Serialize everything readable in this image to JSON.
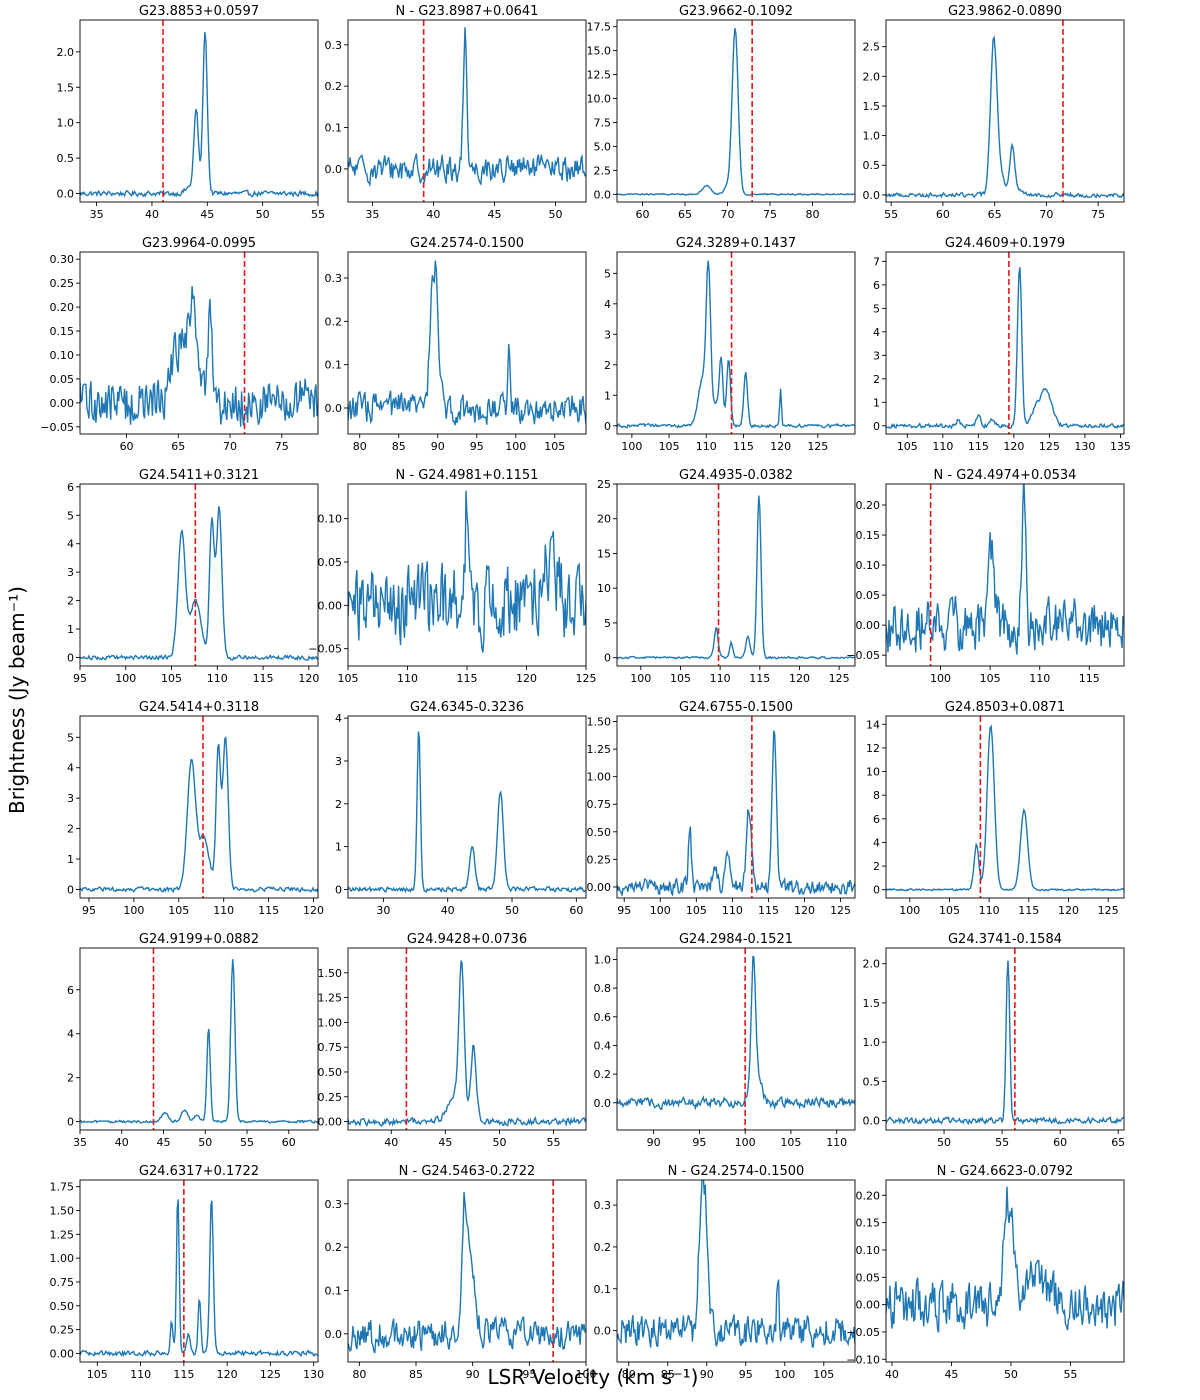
{
  "figure": {
    "xlabel": "LSR Velocity (km s⁻¹)",
    "ylabel": "Brightness (Jy beam⁻¹)",
    "colors": {
      "line": "#1f77b4",
      "marker": "#e31a1c"
    }
  },
  "chart_data": [
    {
      "type": "line",
      "title": "G23.8853+0.0597",
      "xlim": [
        33.5,
        55
      ],
      "ylim": [
        -0.12,
        2.45
      ],
      "xticks": [
        35,
        40,
        45,
        50,
        55
      ],
      "yticks": [
        0.0,
        0.5,
        1.0,
        1.5,
        2.0
      ],
      "ytick_labels": [
        "0.0",
        "0.5",
        "1.0",
        "1.5",
        "2.0"
      ],
      "dashed_x": 41.0,
      "noise": 0.02,
      "baseline": 0,
      "peaks": [
        [
          43.5,
          0.1,
          0.4
        ],
        [
          44.0,
          1.15,
          0.2
        ],
        [
          44.8,
          2.3,
          0.2
        ]
      ]
    },
    {
      "type": "line",
      "title": "N - G23.8987+0.0641",
      "xlim": [
        33,
        52.5
      ],
      "ylim": [
        -0.08,
        0.36
      ],
      "xticks": [
        35,
        40,
        45,
        50
      ],
      "yticks": [
        0.0,
        0.1,
        0.2,
        0.3
      ],
      "ytick_labels": [
        "0.0",
        "0.1",
        "0.2",
        "0.3"
      ],
      "dashed_x": 39.2,
      "noise": 0.018,
      "baseline": 0,
      "peaks": [
        [
          42.6,
          0.33,
          0.15
        ]
      ]
    },
    {
      "type": "line",
      "title": "G23.9662-0.1092",
      "xlim": [
        57,
        85
      ],
      "ylim": [
        -0.8,
        18.2
      ],
      "xticks": [
        60,
        65,
        70,
        75,
        80
      ],
      "yticks": [
        0.0,
        2.5,
        5.0,
        7.5,
        10.0,
        12.5,
        15.0,
        17.5
      ],
      "ytick_labels": [
        "0.0",
        "2.5",
        "5.0",
        "7.5",
        "10.0",
        "12.5",
        "15.0",
        "17.5"
      ],
      "dashed_x": 72.9,
      "noise": 0.04,
      "baseline": 0,
      "peaks": [
        [
          67.5,
          0.9,
          0.5
        ],
        [
          70.9,
          17.3,
          0.35
        ],
        [
          70.0,
          0.8,
          0.4
        ]
      ]
    },
    {
      "type": "line",
      "title": "G23.9862-0.0890",
      "xlim": [
        54.5,
        77.5
      ],
      "ylim": [
        -0.12,
        2.95
      ],
      "xticks": [
        55,
        60,
        65,
        70,
        75
      ],
      "yticks": [
        0.0,
        0.5,
        1.0,
        1.5,
        2.0,
        2.5
      ],
      "ytick_labels": [
        "0.0",
        "0.5",
        "1.0",
        "1.5",
        "2.0",
        "2.5"
      ],
      "dashed_x": 71.6,
      "noise": 0.02,
      "baseline": 0,
      "peaks": [
        [
          64.9,
          2.3,
          0.3
        ],
        [
          65.3,
          0.5,
          0.5
        ],
        [
          66.7,
          0.8,
          0.25
        ],
        [
          67.5,
          0.1,
          0.3
        ]
      ]
    },
    {
      "type": "line",
      "title": "G23.9964-0.0995",
      "xlim": [
        55.5,
        78.5
      ],
      "ylim": [
        -0.065,
        0.315
      ],
      "xticks": [
        60,
        65,
        70,
        75
      ],
      "yticks": [
        -0.05,
        0.0,
        0.05,
        0.1,
        0.15,
        0.2,
        0.25,
        0.3
      ],
      "ytick_labels": [
        "−0.05",
        "0.00",
        "0.05",
        "0.10",
        "0.15",
        "0.20",
        "0.25",
        "0.30"
      ],
      "dashed_x": 71.4,
      "noise": 0.028,
      "baseline": 0,
      "peaks": [
        [
          65.5,
          0.13,
          1.0
        ],
        [
          66.5,
          0.15,
          0.3
        ],
        [
          68.1,
          0.2,
          0.2
        ]
      ]
    },
    {
      "type": "line",
      "title": "G24.2574-0.1500",
      "xlim": [
        78.5,
        109
      ],
      "ylim": [
        -0.06,
        0.36
      ],
      "xticks": [
        80,
        85,
        90,
        95,
        100,
        105
      ],
      "yticks": [
        0.0,
        0.1,
        0.2,
        0.3
      ],
      "ytick_labels": [
        "0.0",
        "0.1",
        "0.2",
        "0.3"
      ],
      "dashed_x": null,
      "noise": 0.02,
      "baseline": 0,
      "peaks": [
        [
          89.2,
          0.22,
          0.3
        ],
        [
          89.8,
          0.28,
          0.35
        ],
        [
          99.1,
          0.13,
          0.15
        ]
      ]
    },
    {
      "type": "line",
      "title": "G24.3289+0.1437",
      "xlim": [
        98,
        130
      ],
      "ylim": [
        -0.27,
        5.7
      ],
      "xticks": [
        100,
        105,
        110,
        115,
        120,
        125
      ],
      "yticks": [
        0,
        1,
        2,
        3,
        4,
        5
      ],
      "ytick_labels": [
        "0",
        "1",
        "2",
        "3",
        "4",
        "5"
      ],
      "dashed_x": 113.4,
      "noise": 0.03,
      "baseline": 0,
      "peaks": [
        [
          109.5,
          1.5,
          0.6
        ],
        [
          110.3,
          4.8,
          0.3
        ],
        [
          112.0,
          2.2,
          0.25
        ],
        [
          113.0,
          2.2,
          0.25
        ],
        [
          115.3,
          1.8,
          0.25
        ],
        [
          120.0,
          1.25,
          0.12
        ],
        [
          111.3,
          0.7,
          0.3
        ]
      ]
    },
    {
      "type": "line",
      "title": "G24.4609+0.1979",
      "xlim": [
        102,
        135.5
      ],
      "ylim": [
        -0.35,
        7.4
      ],
      "xticks": [
        105,
        110,
        115,
        120,
        125,
        130,
        135
      ],
      "yticks": [
        0,
        1,
        2,
        3,
        4,
        5,
        6,
        7
      ],
      "ytick_labels": [
        "0",
        "1",
        "2",
        "3",
        "4",
        "5",
        "6",
        "7"
      ],
      "dashed_x": 119.3,
      "noise": 0.05,
      "baseline": 0,
      "peaks": [
        [
          112.2,
          0.25,
          0.2
        ],
        [
          115.0,
          0.4,
          0.3
        ],
        [
          117.0,
          0.3,
          0.3
        ],
        [
          120.8,
          6.9,
          0.3
        ],
        [
          124.5,
          1.5,
          0.8
        ],
        [
          123.0,
          0.6,
          0.6
        ]
      ]
    },
    {
      "type": "line",
      "title": "G24.5411+0.3121",
      "xlim": [
        95,
        121
      ],
      "ylim": [
        -0.3,
        6.1
      ],
      "xticks": [
        95,
        100,
        105,
        110,
        115,
        120
      ],
      "yticks": [
        0,
        1,
        2,
        3,
        4,
        5,
        6
      ],
      "ytick_labels": [
        "0",
        "1",
        "2",
        "3",
        "4",
        "5",
        "6"
      ],
      "dashed_x": 107.6,
      "noise": 0.04,
      "baseline": 0,
      "peaks": [
        [
          106.1,
          4.4,
          0.4
        ],
        [
          107.6,
          2.0,
          0.6
        ],
        [
          109.4,
          4.8,
          0.25
        ],
        [
          110.2,
          5.3,
          0.3
        ]
      ]
    },
    {
      "type": "line",
      "title": "N - G24.4981+0.1151",
      "xlim": [
        105,
        125
      ],
      "ylim": [
        -0.07,
        0.14
      ],
      "xticks": [
        105,
        110,
        115,
        120,
        125
      ],
      "yticks": [
        -0.05,
        0.0,
        0.05,
        0.1
      ],
      "ytick_labels": [
        "−0.05",
        "0.00",
        "0.05",
        "0.10"
      ],
      "dashed_x": null,
      "noise": 0.025,
      "baseline": 0,
      "peaks": [
        [
          115.0,
          0.12,
          0.15
        ],
        [
          122.0,
          0.04,
          0.6
        ]
      ]
    },
    {
      "type": "line",
      "title": "G24.4935-0.0382",
      "xlim": [
        97,
        127
      ],
      "ylim": [
        -1.2,
        25.0
      ],
      "xticks": [
        100,
        105,
        110,
        115,
        120,
        125
      ],
      "yticks": [
        0,
        5,
        10,
        15,
        20,
        25
      ],
      "ytick_labels": [
        "0",
        "5",
        "10",
        "15",
        "20",
        "25"
      ],
      "dashed_x": 109.8,
      "noise": 0.08,
      "baseline": 0,
      "peaks": [
        [
          109.5,
          4.3,
          0.25
        ],
        [
          111.4,
          2.2,
          0.2
        ],
        [
          113.5,
          3.2,
          0.25
        ],
        [
          114.9,
          23.5,
          0.25
        ]
      ]
    },
    {
      "type": "line",
      "title": "N - G24.4974+0.0534",
      "xlim": [
        94.5,
        118.5
      ],
      "ylim": [
        -0.068,
        0.235
      ],
      "xticks": [
        100,
        105,
        110,
        115
      ],
      "yticks": [
        -0.05,
        0.0,
        0.05,
        0.1,
        0.15,
        0.2
      ],
      "ytick_labels": [
        "−0.05",
        "0.00",
        "0.05",
        "0.10",
        "0.15",
        "0.20"
      ],
      "dashed_x": 99.0,
      "noise": 0.025,
      "baseline": 0,
      "peaks": [
        [
          105.1,
          0.12,
          0.3
        ],
        [
          108.4,
          0.21,
          0.2
        ]
      ]
    },
    {
      "type": "line",
      "title": "G24.5414+0.3118",
      "xlim": [
        94,
        120.5
      ],
      "ylim": [
        -0.28,
        5.7
      ],
      "xticks": [
        95,
        100,
        105,
        110,
        115,
        120
      ],
      "yticks": [
        0,
        1,
        2,
        3,
        4,
        5
      ],
      "ytick_labels": [
        "0",
        "1",
        "2",
        "3",
        "4",
        "5"
      ],
      "dashed_x": 107.7,
      "noise": 0.04,
      "baseline": 0,
      "peaks": [
        [
          106.4,
          4.2,
          0.45
        ],
        [
          107.8,
          1.7,
          0.6
        ],
        [
          109.4,
          4.6,
          0.25
        ],
        [
          110.2,
          5.0,
          0.3
        ]
      ]
    },
    {
      "type": "line",
      "title": "G24.6345-0.3236",
      "xlim": [
        24.5,
        61.5
      ],
      "ylim": [
        -0.2,
        4.05
      ],
      "xticks": [
        30,
        40,
        50,
        60
      ],
      "yticks": [
        0,
        1,
        2,
        3,
        4
      ],
      "ytick_labels": [
        "0",
        "1",
        "2",
        "3",
        "4"
      ],
      "dashed_x": null,
      "noise": 0.03,
      "baseline": 0,
      "peaks": [
        [
          35.5,
          3.8,
          0.25
        ],
        [
          43.8,
          1.0,
          0.4
        ],
        [
          48.2,
          2.3,
          0.45
        ]
      ]
    },
    {
      "type": "line",
      "title": "G24.6755-0.1500",
      "xlim": [
        94,
        127
      ],
      "ylim": [
        -0.1,
        1.55
      ],
      "xticks": [
        95,
        100,
        105,
        110,
        115,
        120,
        125
      ],
      "yticks": [
        0.0,
        0.25,
        0.5,
        0.75,
        1.0,
        1.25,
        1.5
      ],
      "ytick_labels": [
        "0.00",
        "0.25",
        "0.50",
        "0.75",
        "1.00",
        "1.25",
        "1.50"
      ],
      "dashed_x": 112.7,
      "noise": 0.04,
      "baseline": 0,
      "peaks": [
        [
          104.1,
          0.55,
          0.2
        ],
        [
          107.6,
          0.2,
          0.3
        ],
        [
          109.3,
          0.3,
          0.3
        ],
        [
          112.3,
          0.7,
          0.35
        ],
        [
          115.8,
          1.42,
          0.3
        ]
      ]
    },
    {
      "type": "line",
      "title": "G24.8503+0.0871",
      "xlim": [
        97,
        127
      ],
      "ylim": [
        -0.7,
        14.7
      ],
      "xticks": [
        100,
        105,
        110,
        115,
        120,
        125
      ],
      "yticks": [
        0,
        2,
        4,
        6,
        8,
        10,
        12,
        14
      ],
      "ytick_labels": [
        "0",
        "2",
        "4",
        "6",
        "8",
        "10",
        "12",
        "14"
      ],
      "dashed_x": 108.9,
      "noise": 0.04,
      "baseline": 0,
      "peaks": [
        [
          108.4,
          3.8,
          0.3
        ],
        [
          110.2,
          13.9,
          0.45
        ],
        [
          114.4,
          6.8,
          0.45
        ]
      ]
    },
    {
      "type": "line",
      "title": "G24.9199+0.0882",
      "xlim": [
        35,
        63.5
      ],
      "ylim": [
        -0.38,
        7.9
      ],
      "xticks": [
        35,
        40,
        45,
        50,
        55,
        60
      ],
      "yticks": [
        0,
        2,
        4,
        6
      ],
      "ytick_labels": [
        "0",
        "2",
        "4",
        "6"
      ],
      "dashed_x": 43.8,
      "noise": 0.03,
      "baseline": 0,
      "peaks": [
        [
          45.2,
          0.4,
          0.4
        ],
        [
          47.5,
          0.5,
          0.4
        ],
        [
          50.4,
          4.3,
          0.2
        ],
        [
          53.3,
          7.4,
          0.25
        ],
        [
          49.0,
          0.3,
          0.3
        ]
      ]
    },
    {
      "type": "line",
      "title": "G24.9428+0.0736",
      "xlim": [
        36,
        58
      ],
      "ylim": [
        -0.085,
        1.75
      ],
      "xticks": [
        40,
        45,
        50,
        55
      ],
      "yticks": [
        0.0,
        0.25,
        0.5,
        0.75,
        1.0,
        1.25,
        1.5
      ],
      "ytick_labels": [
        "0.00",
        "0.25",
        "0.50",
        "0.75",
        "1.00",
        "1.25",
        "1.50"
      ],
      "dashed_x": 41.4,
      "noise": 0.02,
      "baseline": 0,
      "peaks": [
        [
          45.8,
          0.25,
          0.6
        ],
        [
          46.5,
          1.5,
          0.25
        ],
        [
          47.6,
          0.75,
          0.25
        ]
      ]
    },
    {
      "type": "line",
      "title": "G24.2984-0.1521",
      "xlim": [
        86,
        112
      ],
      "ylim": [
        -0.19,
        1.08
      ],
      "xticks": [
        90,
        95,
        100,
        105,
        110
      ],
      "yticks": [
        0.0,
        0.2,
        0.4,
        0.6,
        0.8,
        1.0
      ],
      "ytick_labels": [
        "0.0",
        "0.2",
        "0.4",
        "0.6",
        "0.8",
        "1.0"
      ],
      "dashed_x": 100.0,
      "noise": 0.02,
      "baseline": 0,
      "peaks": [
        [
          100.9,
          1.0,
          0.25
        ],
        [
          101.5,
          0.15,
          0.4
        ]
      ]
    },
    {
      "type": "line",
      "title": "G24.3741-0.1584",
      "xlim": [
        45,
        65.5
      ],
      "ylim": [
        -0.12,
        2.2
      ],
      "xticks": [
        50,
        55,
        60,
        65
      ],
      "yticks": [
        0.0,
        0.5,
        1.0,
        1.5,
        2.0
      ],
      "ytick_labels": [
        "0.0",
        "0.5",
        "1.0",
        "1.5",
        "2.0"
      ],
      "dashed_x": 56.1,
      "noise": 0.02,
      "baseline": 0,
      "peaks": [
        [
          55.5,
          2.05,
          0.15
        ]
      ]
    },
    {
      "type": "line",
      "title": "G24.6317+0.1722",
      "xlim": [
        103,
        130.5
      ],
      "ylim": [
        -0.09,
        1.82
      ],
      "xticks": [
        105,
        110,
        115,
        120,
        125,
        130
      ],
      "yticks": [
        0.0,
        0.25,
        0.5,
        0.75,
        1.0,
        1.25,
        1.5,
        1.75
      ],
      "ytick_labels": [
        "0.00",
        "0.25",
        "0.50",
        "0.75",
        "1.00",
        "1.25",
        "1.50",
        "1.75"
      ],
      "dashed_x": 115.0,
      "noise": 0.015,
      "baseline": 0,
      "peaks": [
        [
          113.6,
          0.35,
          0.15
        ],
        [
          114.3,
          1.7,
          0.15
        ],
        [
          116.8,
          0.6,
          0.15
        ],
        [
          118.2,
          1.65,
          0.2
        ],
        [
          115.5,
          0.2,
          0.2
        ]
      ]
    },
    {
      "type": "line",
      "title": "N - G24.5463-0.2722",
      "xlim": [
        79,
        100
      ],
      "ylim": [
        -0.065,
        0.355
      ],
      "xticks": [
        80,
        85,
        90,
        95,
        100
      ],
      "yticks": [
        0.0,
        0.1,
        0.2,
        0.3
      ],
      "ytick_labels": [
        "0.0",
        "0.1",
        "0.2",
        "0.3"
      ],
      "dashed_x": 97.1,
      "noise": 0.02,
      "baseline": 0,
      "peaks": [
        [
          89.3,
          0.32,
          0.25
        ],
        [
          90.0,
          0.15,
          0.3
        ]
      ]
    },
    {
      "type": "line",
      "title": "N - G24.2574-0.1500",
      "xlim": [
        78.5,
        109
      ],
      "ylim": [
        -0.075,
        0.36
      ],
      "xticks": [
        80,
        85,
        90,
        95,
        100,
        105
      ],
      "yticks": [
        0.0,
        0.1,
        0.2,
        0.3
      ],
      "ytick_labels": [
        "0.0",
        "0.1",
        "0.2",
        "0.3"
      ],
      "dashed_x": null,
      "noise": 0.022,
      "baseline": 0,
      "peaks": [
        [
          89.2,
          0.22,
          0.3
        ],
        [
          89.8,
          0.3,
          0.35
        ],
        [
          99.1,
          0.13,
          0.15
        ]
      ]
    },
    {
      "type": "line",
      "title": "N - G24.6623-0.0792",
      "xlim": [
        39.5,
        59.5
      ],
      "ylim": [
        -0.105,
        0.228
      ],
      "xticks": [
        40,
        45,
        50,
        55
      ],
      "yticks": [
        -0.1,
        -0.05,
        0.0,
        0.05,
        0.1,
        0.15,
        0.2
      ],
      "ytick_labels": [
        "−0.10",
        "−0.05",
        "0.00",
        "0.05",
        "0.10",
        "0.15",
        "0.20"
      ],
      "dashed_x": null,
      "noise": 0.025,
      "baseline": 0,
      "peaks": [
        [
          49.6,
          0.2,
          0.2
        ],
        [
          50.1,
          0.12,
          0.2
        ],
        [
          52.0,
          0.05,
          1.0
        ]
      ]
    }
  ]
}
